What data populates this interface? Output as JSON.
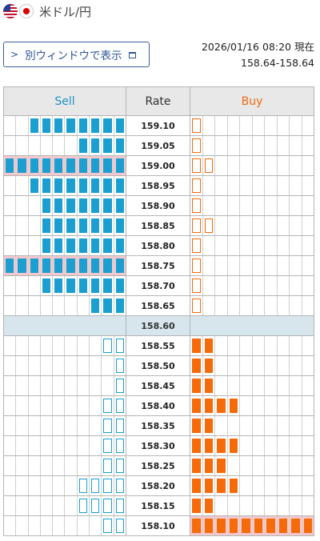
{
  "header": {
    "pair": "米ドル/円",
    "flag_icons": [
      "us-flag-icon",
      "jp-flag-icon"
    ]
  },
  "button": {
    "label": "別ウィンドウで表示"
  },
  "timestamp": {
    "datetime": "2026/01/16 08:20 現在",
    "range": "158.64-158.64"
  },
  "table": {
    "headers": {
      "sell": "Sell",
      "rate": "Rate",
      "buy": "Buy"
    },
    "cols": 10,
    "colors": {
      "sell": "#1a9fd0",
      "buy": "#f56b0a",
      "highlight": "#f4c8cc",
      "mid": "#d6e6ec"
    },
    "rows": [
      {
        "rate": "159.10",
        "sell_full": 8,
        "sell_empty": 0,
        "sell_hl": false,
        "buy_full": 0,
        "buy_empty": 1,
        "buy_hl": false
      },
      {
        "rate": "159.05",
        "sell_full": 4,
        "sell_empty": 0,
        "sell_hl": false,
        "buy_full": 0,
        "buy_empty": 1,
        "buy_hl": false
      },
      {
        "rate": "159.00",
        "sell_full": 10,
        "sell_empty": 0,
        "sell_hl": true,
        "buy_full": 0,
        "buy_empty": 2,
        "buy_hl": false
      },
      {
        "rate": "158.95",
        "sell_full": 8,
        "sell_empty": 0,
        "sell_hl": false,
        "buy_full": 0,
        "buy_empty": 1,
        "buy_hl": false
      },
      {
        "rate": "158.90",
        "sell_full": 7,
        "sell_empty": 0,
        "sell_hl": false,
        "buy_full": 0,
        "buy_empty": 1,
        "buy_hl": false
      },
      {
        "rate": "158.85",
        "sell_full": 7,
        "sell_empty": 0,
        "sell_hl": false,
        "buy_full": 0,
        "buy_empty": 2,
        "buy_hl": false
      },
      {
        "rate": "158.80",
        "sell_full": 7,
        "sell_empty": 0,
        "sell_hl": false,
        "buy_full": 0,
        "buy_empty": 1,
        "buy_hl": false
      },
      {
        "rate": "158.75",
        "sell_full": 10,
        "sell_empty": 0,
        "sell_hl": true,
        "buy_full": 0,
        "buy_empty": 1,
        "buy_hl": false
      },
      {
        "rate": "158.70",
        "sell_full": 7,
        "sell_empty": 0,
        "sell_hl": false,
        "buy_full": 0,
        "buy_empty": 1,
        "buy_hl": false
      },
      {
        "rate": "158.65",
        "sell_full": 3,
        "sell_empty": 0,
        "sell_hl": false,
        "buy_full": 0,
        "buy_empty": 1,
        "buy_hl": false
      },
      {
        "rate": "158.60",
        "mid": true
      },
      {
        "rate": "158.55",
        "sell_full": 0,
        "sell_empty": 2,
        "sell_hl": false,
        "buy_full": 2,
        "buy_empty": 0,
        "buy_hl": false
      },
      {
        "rate": "158.50",
        "sell_full": 0,
        "sell_empty": 1,
        "sell_hl": false,
        "buy_full": 2,
        "buy_empty": 0,
        "buy_hl": false
      },
      {
        "rate": "158.45",
        "sell_full": 0,
        "sell_empty": 1,
        "sell_hl": false,
        "buy_full": 2,
        "buy_empty": 0,
        "buy_hl": false
      },
      {
        "rate": "158.40",
        "sell_full": 0,
        "sell_empty": 2,
        "sell_hl": false,
        "buy_full": 4,
        "buy_empty": 0,
        "buy_hl": false
      },
      {
        "rate": "158.35",
        "sell_full": 0,
        "sell_empty": 2,
        "sell_hl": false,
        "buy_full": 2,
        "buy_empty": 0,
        "buy_hl": false
      },
      {
        "rate": "158.30",
        "sell_full": 0,
        "sell_empty": 2,
        "sell_hl": false,
        "buy_full": 4,
        "buy_empty": 0,
        "buy_hl": false
      },
      {
        "rate": "158.25",
        "sell_full": 0,
        "sell_empty": 2,
        "sell_hl": false,
        "buy_full": 3,
        "buy_empty": 0,
        "buy_hl": false
      },
      {
        "rate": "158.20",
        "sell_full": 0,
        "sell_empty": 4,
        "sell_hl": false,
        "buy_full": 4,
        "buy_empty": 0,
        "buy_hl": false
      },
      {
        "rate": "158.15",
        "sell_full": 0,
        "sell_empty": 4,
        "sell_hl": false,
        "buy_full": 2,
        "buy_empty": 0,
        "buy_hl": false
      },
      {
        "rate": "158.10",
        "sell_full": 0,
        "sell_empty": 2,
        "sell_hl": false,
        "buy_full": 10,
        "buy_empty": 0,
        "buy_hl": true
      }
    ]
  }
}
